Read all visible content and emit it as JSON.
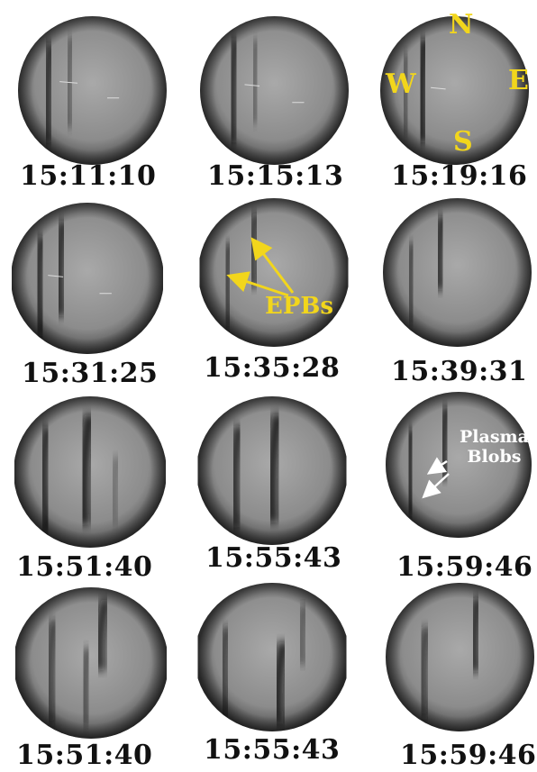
{
  "panels": [
    {
      "time": "15:11:10"
    },
    {
      "time": "15:15:13"
    },
    {
      "time": "15:19:16"
    },
    {
      "time": "15:31:25"
    },
    {
      "time": "15:35:28"
    },
    {
      "time": "15:39:31"
    },
    {
      "time": "15:51:40"
    },
    {
      "time": "15:55:43"
    },
    {
      "time": "15:59:46"
    },
    {
      "time": "15:51:40"
    },
    {
      "time": "15:55:43"
    },
    {
      "time": "15:59:46"
    }
  ],
  "compass": {
    "north": "N",
    "south": "S",
    "east": "E",
    "west": "W"
  },
  "annotations": {
    "epbs": "EPBs",
    "plasma_line1": "Plasma",
    "plasma_line2": "Blobs"
  },
  "colors": {
    "annotation_yellow": "#f2d61c",
    "annotation_white": "#ffffff",
    "timestamp": "#111111"
  }
}
